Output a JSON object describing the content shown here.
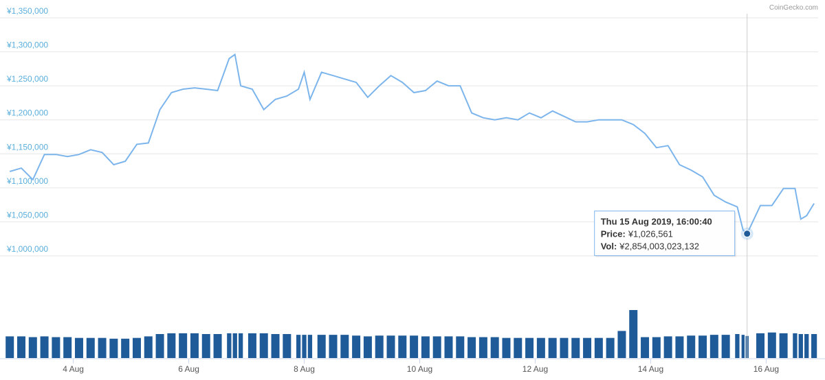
{
  "chart_data": {
    "type": "line",
    "watermark": "CoinGecko.com",
    "color": "#7cb5ec",
    "x": [
      2.9,
      3.1,
      3.3,
      3.5,
      3.7,
      3.9,
      4.1,
      4.3,
      4.5,
      4.7,
      4.9,
      5.1,
      5.3,
      5.5,
      5.7,
      5.9,
      6.1,
      6.3,
      6.5,
      6.7,
      6.8,
      6.9,
      7.1,
      7.3,
      7.5,
      7.7,
      7.9,
      8.0,
      8.1,
      8.3,
      8.5,
      8.7,
      8.9,
      9.1,
      9.3,
      9.5,
      9.7,
      9.9,
      10.1,
      10.3,
      10.5,
      10.7,
      10.9,
      11.1,
      11.3,
      11.5,
      11.7,
      11.9,
      12.1,
      12.3,
      12.5,
      12.7,
      12.9,
      13.1,
      13.3,
      13.5,
      13.7,
      13.9,
      14.1,
      14.3,
      14.5,
      14.7,
      14.9,
      15.1,
      15.3,
      15.5,
      15.6,
      15.67,
      15.9,
      16.1,
      16.3,
      16.5,
      16.6,
      16.7,
      16.83
    ],
    "values": [
      1118000,
      1123000,
      1106000,
      1143000,
      1143000,
      1140000,
      1143000,
      1150000,
      1146000,
      1128000,
      1133000,
      1158000,
      1160000,
      1209000,
      1234000,
      1239000,
      1241000,
      1239000,
      1237000,
      1284000,
      1290000,
      1244000,
      1239000,
      1209000,
      1224000,
      1229000,
      1239000,
      1264000,
      1224000,
      1264000,
      1259000,
      1254000,
      1249000,
      1227000,
      1244000,
      1259000,
      1249000,
      1234000,
      1237000,
      1251000,
      1244000,
      1244000,
      1204000,
      1197000,
      1194000,
      1197000,
      1194000,
      1204000,
      1197000,
      1207000,
      1199000,
      1191000,
      1191000,
      1194000,
      1194000,
      1194000,
      1187000,
      1174000,
      1153000,
      1156000,
      1128000,
      1120000,
      1110000,
      1083000,
      1073000,
      1066000,
      1032000,
      1026561,
      1068000,
      1068000,
      1093000,
      1093000,
      1048000,
      1053000,
      1071000
    ],
    "volume_color": "#1f5b98",
    "volumes": [
      2800000000000,
      2800000000000,
      2700000000000,
      2800000000000,
      2700000000000,
      2700000000000,
      2600000000000,
      2600000000000,
      2600000000000,
      2500000000000,
      2500000000000,
      2600000000000,
      2800000000000,
      3100000000000,
      3200000000000,
      3200000000000,
      3200000000000,
      3100000000000,
      3100000000000,
      3200000000000,
      3200000000000,
      3200000000000,
      3200000000000,
      3200000000000,
      3100000000000,
      3100000000000,
      3000000000000,
      3000000000000,
      3000000000000,
      3000000000000,
      3000000000000,
      3000000000000,
      2900000000000,
      2800000000000,
      2900000000000,
      2900000000000,
      2900000000000,
      2900000000000,
      2800000000000,
      2800000000000,
      2800000000000,
      2800000000000,
      2700000000000,
      2700000000000,
      2700000000000,
      2600000000000,
      2600000000000,
      2600000000000,
      2600000000000,
      2600000000000,
      2600000000000,
      2600000000000,
      2600000000000,
      2600000000000,
      2600000000000,
      3500000000000,
      6200000000000,
      2700000000000,
      2700000000000,
      2800000000000,
      2800000000000,
      2900000000000,
      2900000000000,
      3000000000000,
      3000000000000,
      3100000000000,
      3000000000000,
      2854003023132,
      3200000000000,
      3300000000000,
      3200000000000,
      3200000000000,
      3100000000000,
      3100000000000,
      3100000000000
    ],
    "xlim": [
      2.85,
      16.9
    ],
    "xticks": [
      {
        "value": 4,
        "label": "4 Aug"
      },
      {
        "value": 6,
        "label": "6 Aug"
      },
      {
        "value": 8,
        "label": "8 Aug"
      },
      {
        "value": 10,
        "label": "10 Aug"
      },
      {
        "value": 12,
        "label": "12 Aug"
      },
      {
        "value": 14,
        "label": "14 Aug"
      },
      {
        "value": 16,
        "label": "16 Aug"
      }
    ],
    "ylim": [
      1000000,
      1350000
    ],
    "yticks": [
      {
        "value": 1000000,
        "label": "¥1,000,000"
      },
      {
        "value": 1050000,
        "label": "¥1,050,000"
      },
      {
        "value": 1100000,
        "label": "¥1,100,000"
      },
      {
        "value": 1150000,
        "label": "¥1,150,000"
      },
      {
        "value": 1200000,
        "label": "¥1,200,000"
      },
      {
        "value": 1250000,
        "label": "¥1,250,000"
      },
      {
        "value": 1300000,
        "label": "¥1,300,000"
      },
      {
        "value": 1350000,
        "label": "¥1,350,000"
      }
    ],
    "grid": true,
    "tooltip": {
      "index": 67,
      "date": "Thu 15 Aug 2019, 16:00:40",
      "price_label": "Price:",
      "price": "¥1,026,561",
      "vol_label": "Vol:",
      "vol": "¥2,854,003,023,132"
    }
  }
}
